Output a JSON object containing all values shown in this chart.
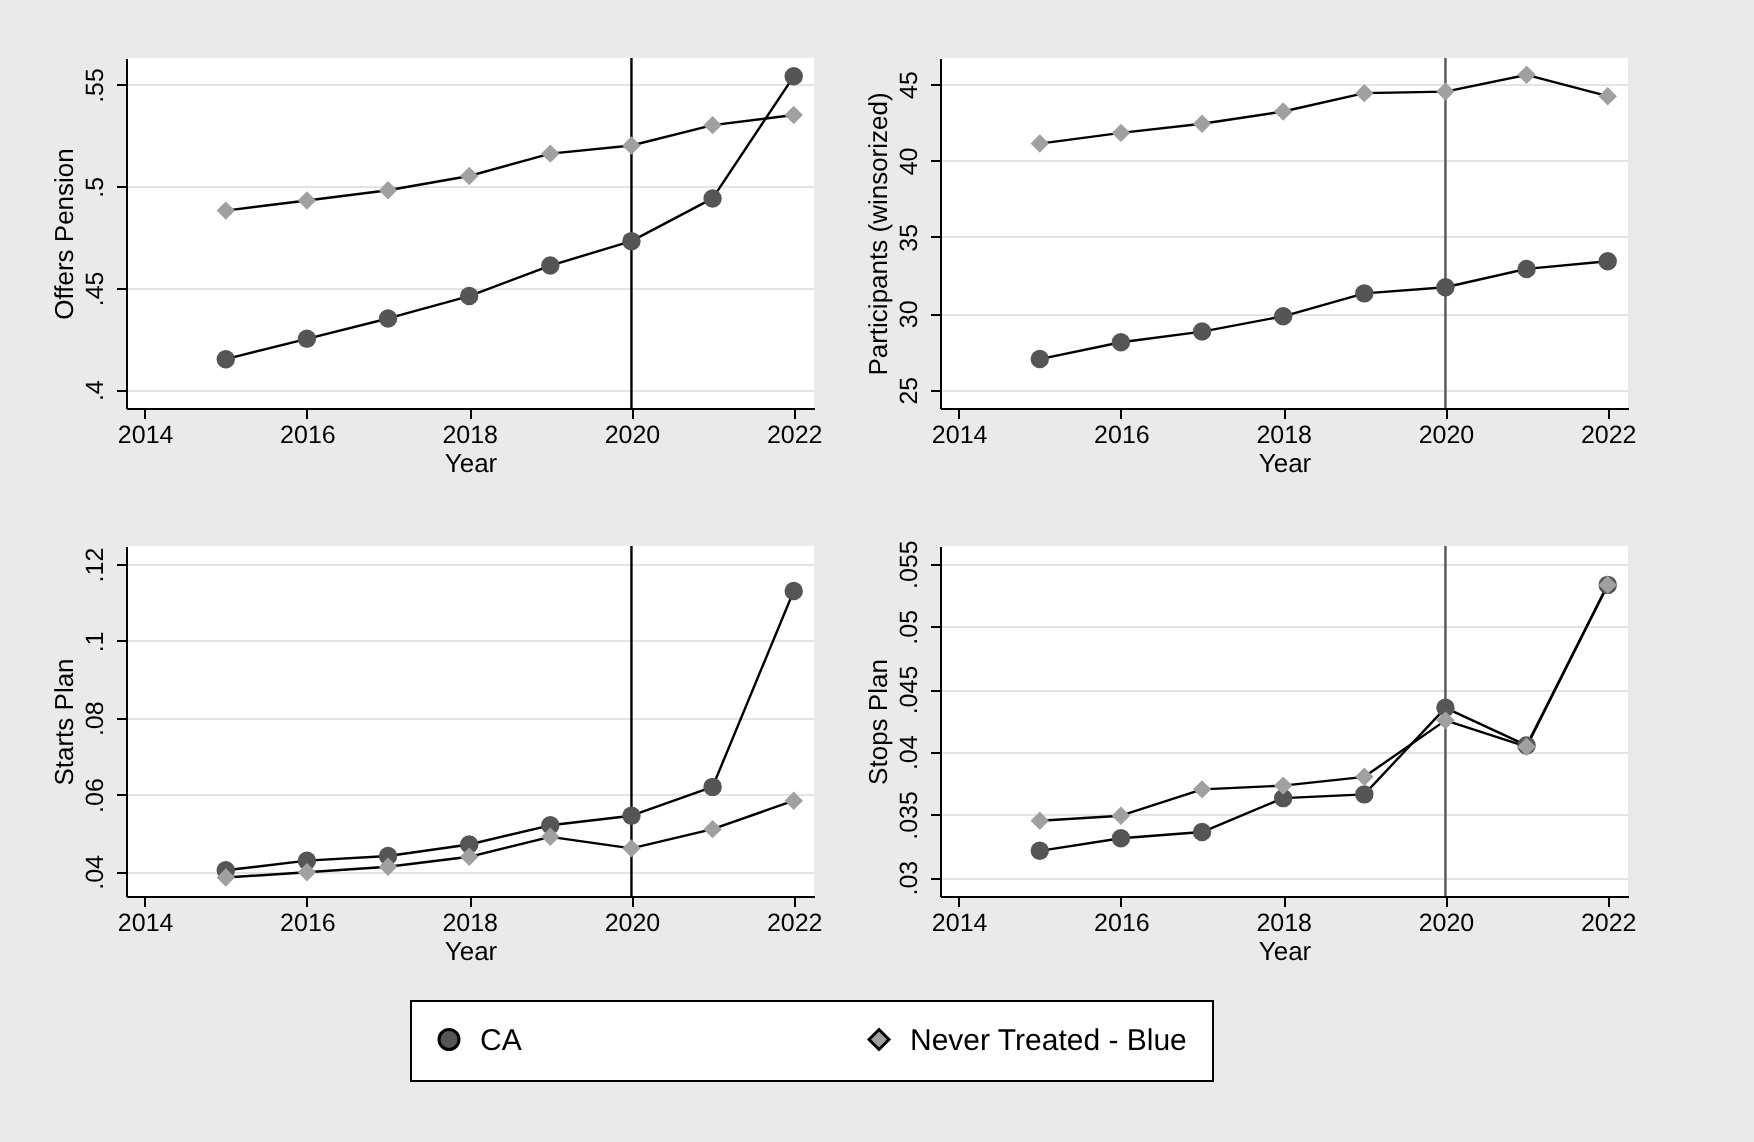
{
  "chart_data": [
    {
      "type": "line",
      "xlabel": "Year",
      "ylabel": "Offers Pension",
      "x": [
        2015,
        2016,
        2017,
        2018,
        2019,
        2020,
        2021,
        2022
      ],
      "xlim": [
        2013.77,
        2022.25
      ],
      "xticks": [
        2014,
        2016,
        2018,
        2020,
        2022
      ],
      "ylim": [
        0.391,
        0.563
      ],
      "yticks": [
        {
          "value": 0.4,
          "label": ".4"
        },
        {
          "value": 0.45,
          "label": ".45"
        },
        {
          "value": 0.5,
          "label": ".5"
        },
        {
          "value": 0.55,
          "label": ".55"
        }
      ],
      "grid": "y",
      "legend": "bottom",
      "ref_lines": [
        {
          "axis": "x",
          "value": 2020,
          "color": "#000000"
        }
      ],
      "series": [
        {
          "name": "CA",
          "color": "#555555",
          "marker": "circle",
          "values": [
            0.415,
            0.425,
            0.435,
            0.446,
            0.461,
            0.473,
            0.494,
            0.554
          ]
        },
        {
          "name": "Never Treated - Blue",
          "color": "#a0a0a0",
          "marker": "diamond",
          "values": [
            0.488,
            0.493,
            0.498,
            0.505,
            0.516,
            0.52,
            0.53,
            0.535
          ]
        }
      ]
    },
    {
      "type": "line",
      "xlabel": "Year",
      "ylabel": "Participants (winsorized)",
      "x": [
        2015,
        2016,
        2017,
        2018,
        2019,
        2020,
        2021,
        2022
      ],
      "xlim": [
        2013.77,
        2022.25
      ],
      "xticks": [
        2014,
        2016,
        2018,
        2020,
        2022
      ],
      "ylim": [
        23.8,
        46.7
      ],
      "yticks": [
        25,
        30,
        35,
        40,
        45
      ],
      "grid": "y",
      "ref_lines": [
        {
          "axis": "x",
          "value": 2020,
          "color": "#555555"
        }
      ],
      "series": [
        {
          "color": "#555555",
          "marker": "circle",
          "values": [
            27.0,
            28.1,
            28.8,
            29.8,
            31.3,
            31.7,
            32.9,
            33.4
          ]
        },
        {
          "color": "#a0a0a0",
          "marker": "diamond",
          "values": [
            41.1,
            41.8,
            42.4,
            43.2,
            44.4,
            44.5,
            45.6,
            44.2
          ]
        }
      ]
    },
    {
      "type": "line",
      "xlabel": "Year",
      "ylabel": "Starts Plan",
      "x": [
        2015,
        2016,
        2017,
        2018,
        2019,
        2020,
        2021,
        2022
      ],
      "xlim": [
        2013.77,
        2022.25
      ],
      "xticks": [
        2014,
        2016,
        2018,
        2020,
        2022
      ],
      "ylim": [
        0.0336,
        0.1247
      ],
      "yticks": [
        {
          "value": 0.04,
          "label": ".04"
        },
        {
          "value": 0.06,
          "label": ".06"
        },
        {
          "value": 0.08,
          "label": ".08"
        },
        {
          "value": 0.1,
          "label": ".1"
        },
        {
          "value": 0.12,
          "label": ".12"
        }
      ],
      "grid": "y",
      "ref_lines": [
        {
          "axis": "x",
          "value": 2020,
          "color": "#000000"
        }
      ],
      "series": [
        {
          "color": "#555555",
          "marker": "circle",
          "values": [
            0.0403,
            0.0428,
            0.044,
            0.047,
            0.052,
            0.0545,
            0.062,
            0.113
          ]
        },
        {
          "color": "#a0a0a0",
          "marker": "diamond",
          "values": [
            0.0384,
            0.0398,
            0.0412,
            0.0438,
            0.049,
            0.046,
            0.051,
            0.0584
          ]
        }
      ]
    },
    {
      "type": "line",
      "xlabel": "Year",
      "ylabel": "Stops Plan",
      "x": [
        2015,
        2016,
        2017,
        2018,
        2019,
        2020,
        2021,
        2022
      ],
      "xlim": [
        2013.77,
        2022.25
      ],
      "xticks": [
        2014,
        2016,
        2018,
        2020,
        2022
      ],
      "ylim": [
        0.0285,
        0.0564
      ],
      "yticks": [
        {
          "value": 0.03,
          "label": ".03"
        },
        {
          "value": 0.035,
          "label": ".035"
        },
        {
          "value": 0.04,
          "label": ".04"
        },
        {
          "value": 0.045,
          "label": ".045"
        },
        {
          "value": 0.05,
          "label": ".05"
        },
        {
          "value": 0.055,
          "label": ".055"
        }
      ],
      "grid": "y",
      "ref_lines": [
        {
          "axis": "x",
          "value": 2020,
          "color": "#555555"
        }
      ],
      "series": [
        {
          "color": "#555555",
          "marker": "circle",
          "values": [
            0.0321,
            0.0331,
            0.0336,
            0.0363,
            0.0366,
            0.0435,
            0.0405,
            0.0533
          ]
        },
        {
          "color": "#a0a0a0",
          "marker": "diamond",
          "values": [
            0.0345,
            0.0349,
            0.037,
            0.0373,
            0.038,
            0.0425,
            0.0404,
            0.0533
          ]
        }
      ]
    }
  ]
}
